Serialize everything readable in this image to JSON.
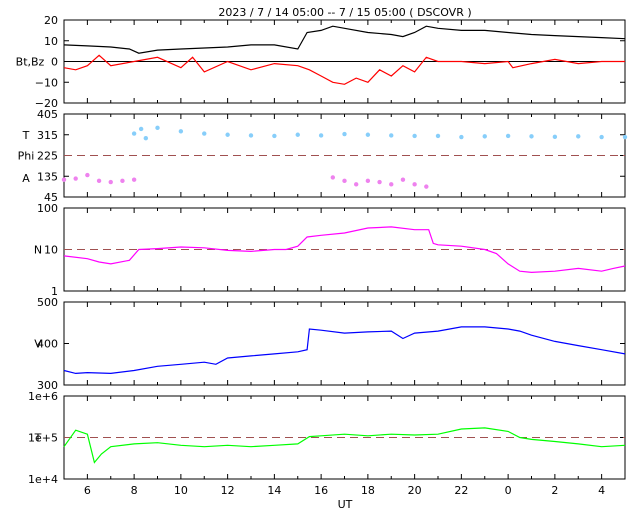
{
  "chart_data": {
    "type": "line",
    "title": "2023 /  7 / 14   05:00 --   7 / 15   05:00 ( DSCOVR )",
    "xlabel": "UT",
    "xticks": [
      "6",
      "8",
      "10",
      "12",
      "14",
      "16",
      "18",
      "20",
      "22",
      "0",
      "2",
      "4"
    ],
    "x_range_hours": [
      5.0,
      29.0
    ],
    "panels": [
      {
        "id": "mag",
        "ylabel": "Bt,Bz",
        "yticks": [
          "20",
          "10",
          "0",
          "−10",
          "−20"
        ],
        "ylim": [
          -20,
          20
        ],
        "reference_line": 0,
        "series": [
          {
            "name": "Bt",
            "color": "#000000",
            "points": [
              [
                5.0,
                8
              ],
              [
                6,
                7.5
              ],
              [
                7,
                7
              ],
              [
                7.8,
                6
              ],
              [
                8.2,
                4
              ],
              [
                9,
                5.5
              ],
              [
                10,
                6
              ],
              [
                11,
                6.5
              ],
              [
                12,
                7
              ],
              [
                13,
                8
              ],
              [
                14,
                8
              ],
              [
                15,
                6
              ],
              [
                15.4,
                14
              ],
              [
                16,
                15
              ],
              [
                16.5,
                17
              ],
              [
                17,
                16
              ],
              [
                18,
                14
              ],
              [
                19,
                13
              ],
              [
                19.5,
                12
              ],
              [
                20,
                14
              ],
              [
                20.5,
                17
              ],
              [
                21,
                16
              ],
              [
                22,
                15
              ],
              [
                23,
                15
              ],
              [
                24,
                14
              ],
              [
                25,
                13
              ],
              [
                26,
                12.5
              ],
              [
                27,
                12
              ],
              [
                28,
                11.5
              ],
              [
                29,
                11
              ]
            ]
          },
          {
            "name": "Bz",
            "color": "#ff0000",
            "points": [
              [
                5.0,
                -3
              ],
              [
                5.5,
                -4
              ],
              [
                6,
                -2
              ],
              [
                6.5,
                3
              ],
              [
                7,
                -2
              ],
              [
                8,
                0
              ],
              [
                9,
                2
              ],
              [
                10,
                -3
              ],
              [
                10.5,
                2
              ],
              [
                11,
                -5
              ],
              [
                12,
                0
              ],
              [
                13,
                -4
              ],
              [
                14,
                -1
              ],
              [
                15,
                -2
              ],
              [
                15.5,
                -4
              ],
              [
                16,
                -7
              ],
              [
                16.5,
                -10
              ],
              [
                17,
                -11
              ],
              [
                17.5,
                -8
              ],
              [
                18,
                -10
              ],
              [
                18.5,
                -4
              ],
              [
                19,
                -7
              ],
              [
                19.5,
                -2
              ],
              [
                20,
                -5
              ],
              [
                20.5,
                2
              ],
              [
                21,
                0
              ],
              [
                22,
                0
              ],
              [
                23,
                -1
              ],
              [
                24,
                0
              ],
              [
                24.2,
                -3
              ],
              [
                25,
                -1
              ],
              [
                26,
                1
              ],
              [
                27,
                -1
              ],
              [
                28,
                0
              ],
              [
                29,
                0
              ]
            ]
          }
        ]
      },
      {
        "id": "temp-angle",
        "ylabel_top": "T",
        "ylabel_mid": "Phi",
        "ylabel_bottom": "A",
        "yticks": [
          "405",
          "315",
          "225",
          "135",
          "45"
        ],
        "ylim": [
          45,
          405
        ],
        "reference_line": 225,
        "series": [
          {
            "name": "T",
            "color": "#87cefa",
            "points": [
              [
                8,
                320
              ],
              [
                8.3,
                340
              ],
              [
                8.5,
                300
              ],
              [
                9,
                345
              ],
              [
                10,
                330
              ],
              [
                11,
                320
              ],
              [
                12,
                315
              ],
              [
                13,
                312
              ],
              [
                14,
                310
              ],
              [
                15,
                315
              ],
              [
                16,
                312
              ],
              [
                17,
                318
              ],
              [
                18,
                315
              ],
              [
                19,
                312
              ],
              [
                20,
                310
              ],
              [
                21,
                310
              ],
              [
                22,
                305
              ],
              [
                23,
                308
              ],
              [
                24,
                310
              ],
              [
                25,
                308
              ],
              [
                26,
                306
              ],
              [
                27,
                308
              ],
              [
                28,
                305
              ],
              [
                29,
                305
              ]
            ]
          },
          {
            "name": "A",
            "color": "#ee82ee",
            "points": [
              [
                5,
                120
              ],
              [
                5.5,
                125
              ],
              [
                6,
                140
              ],
              [
                6.5,
                115
              ],
              [
                7,
                110
              ],
              [
                7.5,
                115
              ],
              [
                8,
                120
              ],
              [
                16.5,
                130
              ],
              [
                17,
                115
              ],
              [
                17.5,
                100
              ],
              [
                18,
                115
              ],
              [
                18.5,
                110
              ],
              [
                19,
                100
              ],
              [
                19.5,
                120
              ],
              [
                20,
                100
              ],
              [
                20.5,
                90
              ]
            ]
          }
        ]
      },
      {
        "id": "density",
        "ylabel": "N",
        "yticks": [
          "100",
          "10",
          "1"
        ],
        "scale": "log",
        "ylim": [
          1,
          100
        ],
        "reference_line": 10,
        "series": [
          {
            "name": "N",
            "color": "#ff00ff",
            "points": [
              [
                5,
                7
              ],
              [
                6,
                6
              ],
              [
                6.5,
                5
              ],
              [
                7,
                4.5
              ],
              [
                7.8,
                5.5
              ],
              [
                8.2,
                10
              ],
              [
                9,
                10.5
              ],
              [
                10,
                11.5
              ],
              [
                11,
                11
              ],
              [
                12,
                9.5
              ],
              [
                13,
                9
              ],
              [
                14,
                10
              ],
              [
                14.5,
                10
              ],
              [
                15,
                12
              ],
              [
                15.4,
                20
              ],
              [
                16,
                22
              ],
              [
                17,
                25
              ],
              [
                18,
                33
              ],
              [
                19,
                35
              ],
              [
                20,
                30
              ],
              [
                20.6,
                30
              ],
              [
                20.8,
                14
              ],
              [
                21,
                13
              ],
              [
                22,
                12
              ],
              [
                23,
                10
              ],
              [
                23.5,
                8
              ],
              [
                24,
                4.5
              ],
              [
                24.5,
                3
              ],
              [
                25,
                2.8
              ],
              [
                26,
                3
              ],
              [
                27,
                3.5
              ],
              [
                28,
                3
              ],
              [
                28.5,
                3.5
              ],
              [
                29,
                4
              ]
            ]
          }
        ]
      },
      {
        "id": "speed",
        "ylabel": "V",
        "yticks": [
          "500",
          "400",
          "300"
        ],
        "ylim": [
          300,
          500
        ],
        "series": [
          {
            "name": "V",
            "color": "#0000ff",
            "points": [
              [
                5,
                335
              ],
              [
                5.5,
                328
              ],
              [
                6,
                330
              ],
              [
                7,
                328
              ],
              [
                8,
                335
              ],
              [
                9,
                345
              ],
              [
                10,
                350
              ],
              [
                11,
                355
              ],
              [
                11.5,
                350
              ],
              [
                12,
                365
              ],
              [
                13,
                370
              ],
              [
                14,
                375
              ],
              [
                15,
                380
              ],
              [
                15.4,
                385
              ],
              [
                15.5,
                435
              ],
              [
                16,
                432
              ],
              [
                17,
                425
              ],
              [
                18,
                428
              ],
              [
                19,
                430
              ],
              [
                19.5,
                412
              ],
              [
                20,
                425
              ],
              [
                21,
                430
              ],
              [
                22,
                440
              ],
              [
                23,
                440
              ],
              [
                24,
                435
              ],
              [
                24.5,
                430
              ],
              [
                25,
                420
              ],
              [
                26,
                405
              ],
              [
                27,
                395
              ],
              [
                28,
                385
              ],
              [
                29,
                375
              ]
            ]
          }
        ]
      },
      {
        "id": "temperature",
        "ylabel": "T",
        "yticks": [
          "1e+6",
          "1e+5",
          "1e+4"
        ],
        "scale": "log",
        "ylim": [
          10000,
          1000000
        ],
        "reference_line": 100000,
        "series": [
          {
            "name": "T",
            "color": "#00ff00",
            "points": [
              [
                5,
                60000
              ],
              [
                5.5,
                150000
              ],
              [
                6,
                120000
              ],
              [
                6.3,
                25000
              ],
              [
                6.6,
                40000
              ],
              [
                7,
                60000
              ],
              [
                8,
                70000
              ],
              [
                9,
                75000
              ],
              [
                10,
                65000
              ],
              [
                11,
                60000
              ],
              [
                12,
                65000
              ],
              [
                13,
                60000
              ],
              [
                14,
                65000
              ],
              [
                15,
                70000
              ],
              [
                15.5,
                105000
              ],
              [
                16,
                110000
              ],
              [
                17,
                120000
              ],
              [
                18,
                110000
              ],
              [
                19,
                120000
              ],
              [
                20,
                115000
              ],
              [
                21,
                120000
              ],
              [
                22,
                160000
              ],
              [
                23,
                170000
              ],
              [
                24,
                140000
              ],
              [
                24.5,
                100000
              ],
              [
                25,
                90000
              ],
              [
                26,
                80000
              ],
              [
                27,
                70000
              ],
              [
                28,
                60000
              ],
              [
                29,
                65000
              ]
            ]
          }
        ]
      }
    ]
  },
  "colors": {
    "reference_line": "#a05050",
    "frame": "#000000",
    "T_angle_scatter": "#87cefa",
    "A_angle_scatter": "#ee82ee"
  }
}
